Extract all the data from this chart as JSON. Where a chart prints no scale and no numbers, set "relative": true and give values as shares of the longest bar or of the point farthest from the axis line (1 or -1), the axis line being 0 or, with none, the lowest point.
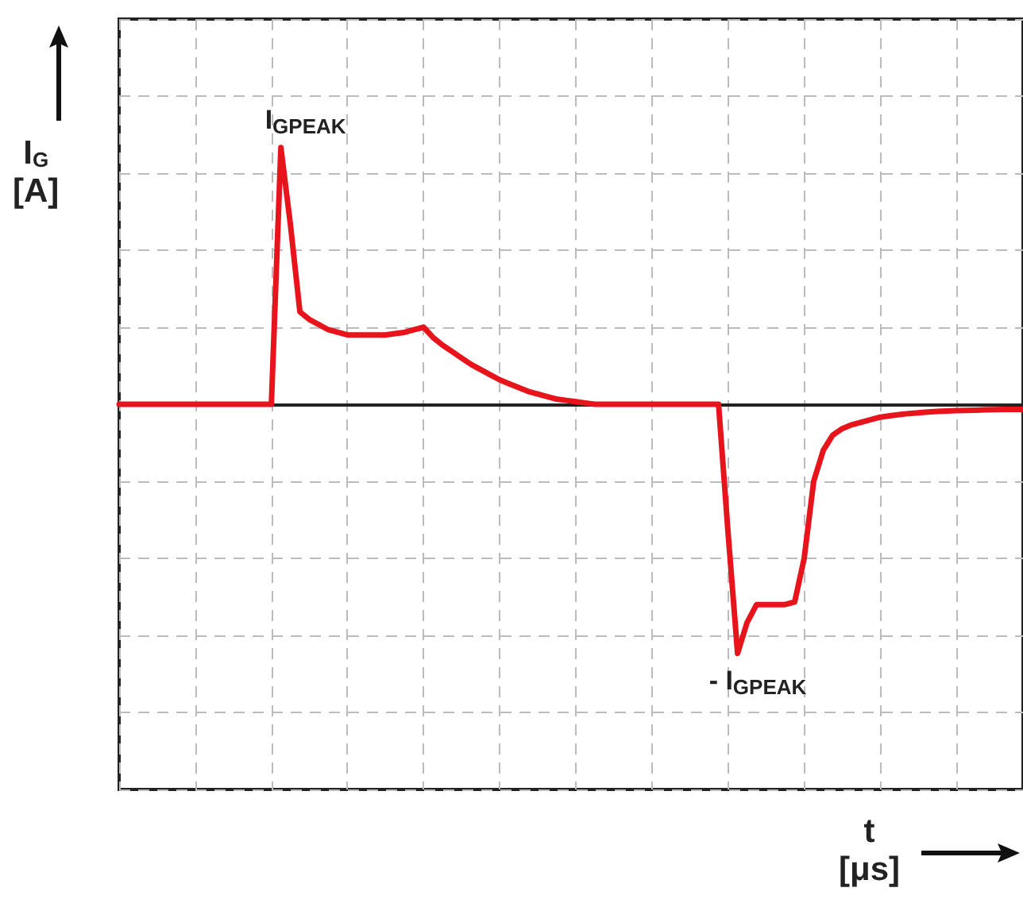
{
  "chart_data": {
    "type": "line",
    "relative": true,
    "color": "#e8141c",
    "grid": true,
    "line_style": "solid",
    "ylabel": "I$_{G}$ [A]",
    "xlabel": "t [μs]",
    "categories": [
      null,
      null,
      null,
      null,
      null,
      null,
      null,
      null,
      null,
      null,
      null,
      null,
      null,
      null,
      null,
      null,
      null,
      null,
      null,
      null,
      null,
      null,
      null,
      null,
      null,
      null,
      null,
      null,
      null,
      null,
      null,
      null,
      null,
      null,
      null,
      null,
      null,
      null,
      null,
      null,
      null,
      null,
      null,
      null,
      null,
      null,
      null,
      null,
      null,
      null,
      null,
      null,
      null,
      null,
      null,
      null,
      null,
      null,
      null,
      null,
      null,
      null,
      null,
      null,
      null,
      null,
      null,
      null,
      null,
      null,
      null,
      null,
      null,
      null,
      null,
      null,
      null,
      null,
      null,
      null,
      null,
      null,
      null,
      null,
      null,
      null,
      null,
      null,
      null,
      null,
      null,
      null,
      null,
      null,
      null,
      null
    ],
    "values": [
      0,
      0,
      0,
      0,
      0,
      0,
      0,
      0,
      0,
      0,
      0,
      0,
      0,
      0,
      0,
      0,
      0,
      1,
      0.7,
      0.36,
      0.33,
      0.31,
      0.29,
      0.28,
      0.27,
      0.27,
      0.27,
      0.27,
      0.27,
      0.275,
      0.28,
      0.29,
      0.3,
      0.26,
      0.23,
      0.205,
      0.18,
      0.155,
      0.135,
      0.115,
      0.095,
      0.08,
      0.065,
      0.05,
      0.04,
      0.03,
      0.02,
      0.015,
      0.01,
      0.005,
      0,
      0,
      0,
      0,
      0,
      0,
      0,
      0,
      0,
      0,
      0,
      0,
      0,
      0,
      -0.5,
      -0.97,
      -0.85,
      -0.78,
      -0.78,
      -0.78,
      -0.78,
      -0.77,
      -0.6,
      -0.3,
      -0.18,
      -0.12,
      -0.095,
      -0.08,
      -0.07,
      -0.06,
      -0.05,
      -0.045,
      -0.04,
      -0.036,
      -0.033,
      -0.03,
      -0.028,
      -0.026,
      -0.025,
      -0.024,
      -0.023,
      -0.022,
      -0.021,
      -0.02,
      -0.02,
      -0.02
    ],
    "annotations": [
      "I$_{GPEAK}$",
      "- I$_{GPEAK}$"
    ]
  }
}
